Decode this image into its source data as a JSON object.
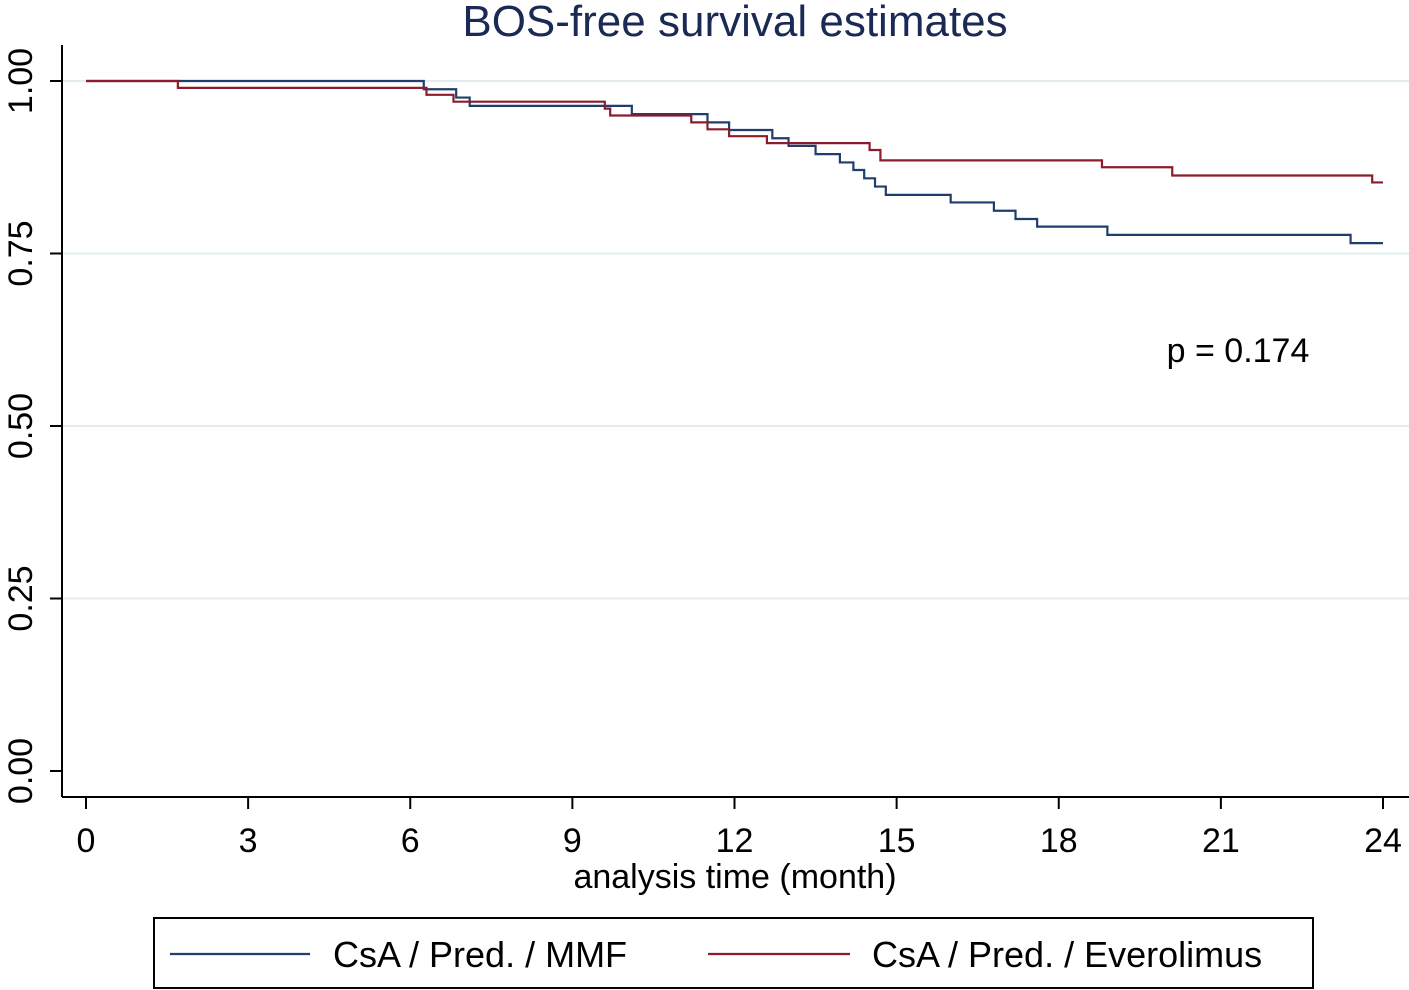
{
  "chart_data": {
    "type": "line",
    "title": "BOS-free survival estimates",
    "xlabel": "analysis time (month)",
    "ylabel": "",
    "xlim": [
      0,
      24
    ],
    "ylim": [
      0,
      1
    ],
    "x_ticks": [
      0,
      3,
      6,
      9,
      12,
      15,
      18,
      21,
      24
    ],
    "x_tick_labels": [
      "0",
      "3",
      "6",
      "9",
      "12",
      "15",
      "18",
      "21",
      "24"
    ],
    "y_ticks": [
      0,
      0.25,
      0.5,
      0.75,
      1
    ],
    "y_tick_labels": [
      "0.00",
      "0.25",
      "0.50",
      "0.75",
      "1.00"
    ],
    "grid": true,
    "step": true,
    "annotation": "p = 0.174",
    "legend_position": "bottom",
    "series": [
      {
        "name": "CsA / Pred. / MMF",
        "color": "#1f3e6e",
        "points": [
          [
            0,
            1.0
          ],
          [
            6.25,
            0.988
          ],
          [
            6.85,
            0.976
          ],
          [
            7.1,
            0.964
          ],
          [
            10.1,
            0.952
          ],
          [
            11.5,
            0.94
          ],
          [
            11.9,
            0.929
          ],
          [
            12.7,
            0.917
          ],
          [
            13.0,
            0.906
          ],
          [
            13.5,
            0.894
          ],
          [
            13.95,
            0.882
          ],
          [
            14.2,
            0.871
          ],
          [
            14.4,
            0.859
          ],
          [
            14.6,
            0.847
          ],
          [
            14.8,
            0.835
          ],
          [
            16.0,
            0.824
          ],
          [
            16.8,
            0.812
          ],
          [
            17.2,
            0.8
          ],
          [
            17.6,
            0.789
          ],
          [
            18.9,
            0.777
          ],
          [
            23.4,
            0.765
          ],
          [
            24.0,
            0.765
          ]
        ]
      },
      {
        "name": "CsA / Pred. / Everolimus",
        "color": "#8b1c2c",
        "points": [
          [
            0,
            1.0
          ],
          [
            1.7,
            0.99
          ],
          [
            6.3,
            0.98
          ],
          [
            6.8,
            0.97
          ],
          [
            9.6,
            0.96
          ],
          [
            9.7,
            0.95
          ],
          [
            11.2,
            0.94
          ],
          [
            11.5,
            0.93
          ],
          [
            11.9,
            0.92
          ],
          [
            12.6,
            0.91
          ],
          [
            13.2,
            0.91
          ],
          [
            14.5,
            0.9
          ],
          [
            14.7,
            0.885
          ],
          [
            18.8,
            0.875
          ],
          [
            20.1,
            0.863
          ],
          [
            23.8,
            0.853
          ],
          [
            24.0,
            0.853
          ]
        ]
      }
    ]
  }
}
